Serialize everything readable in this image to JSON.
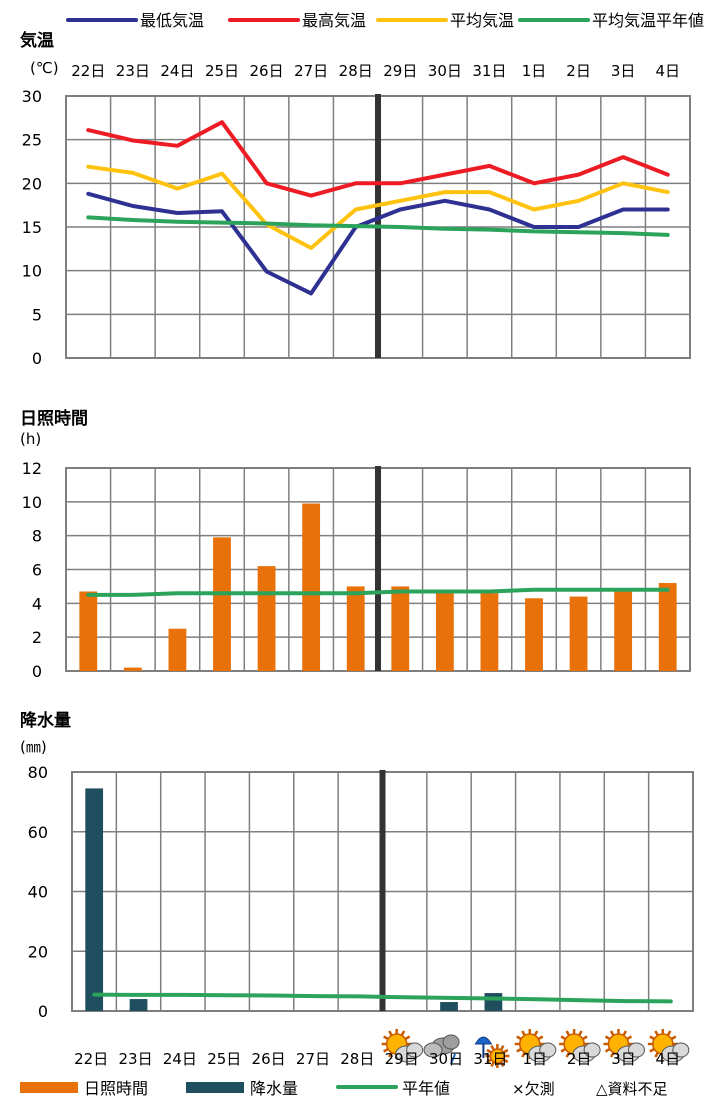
{
  "colors": {
    "min_temp": "#2e3192",
    "max_temp": "#ed1c24",
    "avg_temp": "#ffc20e",
    "normal": "#2ca35a",
    "sunshine_bar": "#e8710a",
    "precip_bar": "#1f4e5f",
    "divider": "#333333",
    "grid": "#7f7f7f"
  },
  "days": [
    "22日",
    "23日",
    "24日",
    "25日",
    "26日",
    "27日",
    "28日",
    "29日",
    "30日",
    "31日",
    "1日",
    "2日",
    "3日",
    "4日"
  ],
  "legend_top": {
    "items": [
      {
        "label": "最低気温",
        "color_key": "min_temp"
      },
      {
        "label": "最高気温",
        "color_key": "max_temp"
      },
      {
        "label": "平均気温",
        "color_key": "avg_temp"
      },
      {
        "label": "平均気温平年値",
        "color_key": "normal"
      }
    ]
  },
  "legend_bottom": {
    "items": [
      {
        "label": "日照時間",
        "color_key": "sunshine_bar",
        "kind": "bar"
      },
      {
        "label": "降水量",
        "color_key": "precip_bar",
        "kind": "bar"
      },
      {
        "label": "平年値",
        "color_key": "normal",
        "kind": "line"
      }
    ],
    "notes": [
      "×欠測",
      "△資料不足"
    ]
  },
  "weather_icons": [
    {
      "day": "29日",
      "icon": "sun-cloud-icon"
    },
    {
      "day": "30日",
      "icon": "cloud-rain-icon"
    },
    {
      "day": "31日",
      "icon": "umbrella-sun-icon"
    },
    {
      "day": "1日",
      "icon": "sun-cloud-icon"
    },
    {
      "day": "2日",
      "icon": "sun-cloud-icon"
    },
    {
      "day": "3日",
      "icon": "sun-cloud-icon"
    },
    {
      "day": "4日",
      "icon": "sun-cloud-icon"
    }
  ],
  "chart_data": [
    {
      "type": "line",
      "title": "気温",
      "unit": "(℃)",
      "categories": [
        "22日",
        "23日",
        "24日",
        "25日",
        "26日",
        "27日",
        "28日",
        "29日",
        "30日",
        "31日",
        "1日",
        "2日",
        "3日",
        "4日"
      ],
      "ylim": [
        0,
        30
      ],
      "yticks": [
        0,
        5,
        10,
        15,
        20,
        25,
        30
      ],
      "divider_after_index": 6,
      "series": [
        {
          "name": "最低気温",
          "color_key": "min_temp",
          "values": [
            18.8,
            17.4,
            16.6,
            16.8,
            9.9,
            7.4,
            15.0,
            17.0,
            18.0,
            17.0,
            15.0,
            15.0,
            17.0,
            17.0
          ]
        },
        {
          "name": "最高気温",
          "color_key": "max_temp",
          "values": [
            26.1,
            24.9,
            24.3,
            27.0,
            20.0,
            18.6,
            20.0,
            20.0,
            21.0,
            22.0,
            20.0,
            21.0,
            23.0,
            21.0
          ]
        },
        {
          "name": "平均気温",
          "color_key": "avg_temp",
          "values": [
            21.9,
            21.2,
            19.4,
            21.1,
            15.3,
            12.6,
            17.0,
            18.0,
            19.0,
            19.0,
            17.0,
            18.0,
            20.0,
            19.0
          ]
        },
        {
          "name": "平均気温平年値",
          "color_key": "normal",
          "values": [
            16.1,
            15.8,
            15.6,
            15.5,
            15.4,
            15.2,
            15.1,
            15.0,
            14.8,
            14.7,
            14.5,
            14.4,
            14.3,
            14.1
          ]
        }
      ]
    },
    {
      "type": "bar",
      "title": "日照時間",
      "unit": "(h)",
      "categories": [
        "22日",
        "23日",
        "24日",
        "25日",
        "26日",
        "27日",
        "28日",
        "29日",
        "30日",
        "31日",
        "1日",
        "2日",
        "3日",
        "4日"
      ],
      "ylim": [
        0,
        12
      ],
      "yticks": [
        0,
        2,
        4,
        6,
        8,
        10,
        12
      ],
      "divider_after_index": 6,
      "series": [
        {
          "name": "日照時間",
          "color_key": "sunshine_bar",
          "values": [
            4.7,
            0.2,
            2.5,
            7.9,
            6.2,
            9.9,
            5.0,
            5.0,
            4.6,
            4.6,
            4.3,
            4.4,
            4.7,
            5.2
          ]
        },
        {
          "name": "平年値",
          "color_key": "normal",
          "kind": "line",
          "values": [
            4.5,
            4.5,
            4.6,
            4.6,
            4.6,
            4.6,
            4.6,
            4.7,
            4.7,
            4.7,
            4.8,
            4.8,
            4.8,
            4.8
          ]
        }
      ]
    },
    {
      "type": "bar",
      "title": "降水量",
      "unit": "(㎜)",
      "categories": [
        "22日",
        "23日",
        "24日",
        "25日",
        "26日",
        "27日",
        "28日",
        "29日",
        "30日",
        "31日",
        "1日",
        "2日",
        "3日",
        "4日"
      ],
      "ylim": [
        0,
        80
      ],
      "yticks": [
        0,
        20,
        40,
        60,
        80
      ],
      "divider_after_index": 6,
      "series": [
        {
          "name": "降水量",
          "color_key": "precip_bar",
          "values": [
            74.5,
            4.0,
            0,
            0,
            0,
            0,
            0,
            0,
            3.0,
            6.0,
            0,
            0,
            0,
            0
          ]
        },
        {
          "name": "平年値",
          "color_key": "normal",
          "kind": "line",
          "values": [
            5.5,
            5.4,
            5.4,
            5.3,
            5.2,
            5.0,
            4.9,
            4.6,
            4.4,
            4.2,
            3.9,
            3.6,
            3.3,
            3.2
          ]
        }
      ]
    }
  ]
}
